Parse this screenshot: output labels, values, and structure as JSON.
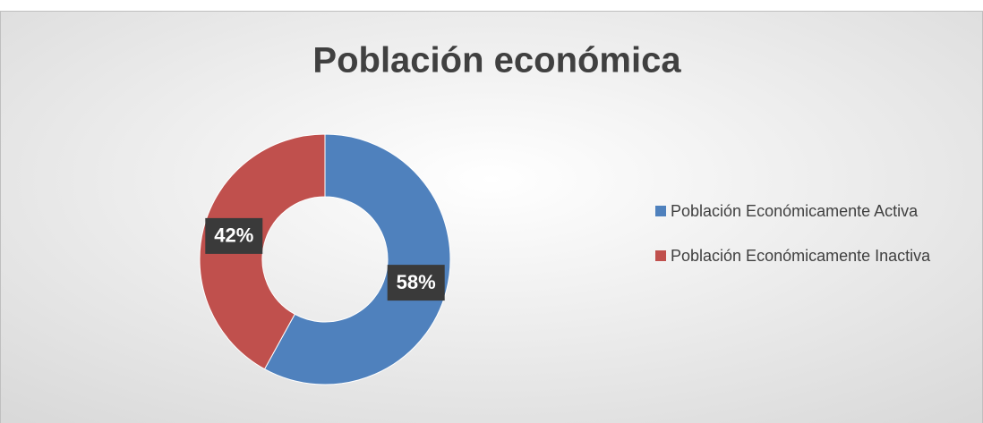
{
  "chart_data": {
    "type": "donut",
    "title": "Población económica",
    "categories": [
      "Población Económicamente Activa",
      "Población Económicamente Inactiva"
    ],
    "values": [
      58,
      42
    ],
    "value_labels": [
      "58%",
      "42%"
    ],
    "colors": [
      "#4f81bd",
      "#c0504d"
    ],
    "legend": "right"
  }
}
